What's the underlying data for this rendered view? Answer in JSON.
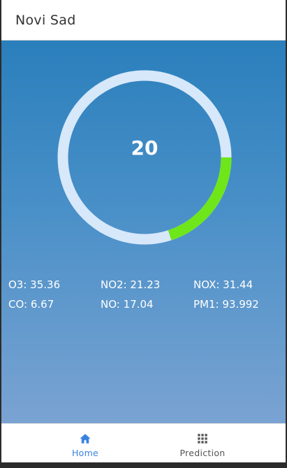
{
  "app_bar": {
    "title": "Novi Sad"
  },
  "gauge": {
    "value": "20",
    "fraction": 0.2,
    "colors": {
      "track": "#d6e8fa",
      "progress": "#6ee61a"
    }
  },
  "metrics": [
    {
      "label": "O3: 35.36"
    },
    {
      "label": "NO2: 21.23"
    },
    {
      "label": "NOX: 31.44"
    },
    {
      "label": "CO: 6.67"
    },
    {
      "label": "NO: 17.04"
    },
    {
      "label": "PM1: 93.992"
    }
  ],
  "bottom_nav": {
    "items": [
      {
        "label": "Home",
        "icon": "home-icon",
        "active": true
      },
      {
        "label": "Prediction",
        "icon": "grid-icon",
        "active": false
      }
    ]
  },
  "colors": {
    "accent": "#3b82e0",
    "gradient_top": "#2a7fbc",
    "gradient_bottom": "#7aa3d2"
  }
}
